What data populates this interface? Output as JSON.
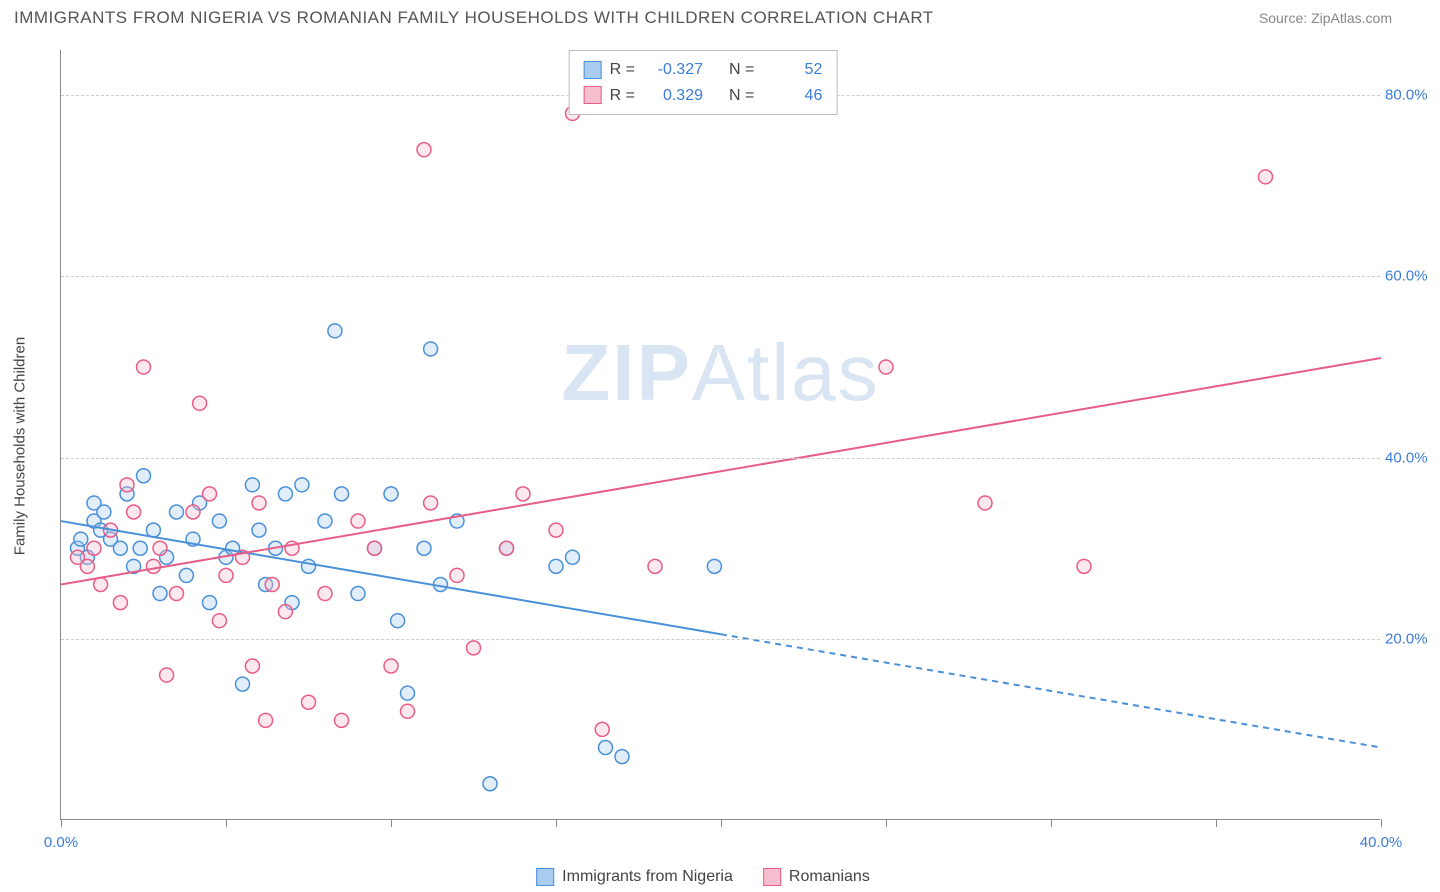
{
  "title": "IMMIGRANTS FROM NIGERIA VS ROMANIAN FAMILY HOUSEHOLDS WITH CHILDREN CORRELATION CHART",
  "source_label": "Source: ",
  "source_value": "ZipAtlas.com",
  "ylabel": "Family Households with Children",
  "watermark_bold": "ZIP",
  "watermark_thin": "Atlas",
  "chart": {
    "type": "scatter",
    "xlim": [
      0,
      40
    ],
    "ylim": [
      0,
      85
    ],
    "xticks": [
      0,
      5,
      10,
      15,
      20,
      25,
      30,
      35,
      40
    ],
    "xtick_labels": {
      "0": "0.0%",
      "40": "40.0%"
    },
    "yticks": [
      20,
      40,
      60,
      80
    ],
    "ytick_labels": [
      "20.0%",
      "40.0%",
      "60.0%",
      "80.0%"
    ],
    "grid_color": "#cccccc",
    "background_color": "#ffffff",
    "marker_radius": 7,
    "marker_fill_opacity": 0.35,
    "marker_stroke_width": 1.5,
    "line_width": 2
  },
  "series": [
    {
      "key": "nigeria",
      "label": "Immigrants from Nigeria",
      "color_fill": "#a9cdf0",
      "color_stroke": "#4a90d9",
      "r_value": "-0.327",
      "n_value": "52",
      "trend": {
        "x1": 0,
        "y1": 33,
        "x2": 40,
        "y2": 8,
        "solid_until_x": 20
      },
      "points": [
        [
          0.5,
          30
        ],
        [
          0.6,
          31
        ],
        [
          0.8,
          29
        ],
        [
          1.0,
          33
        ],
        [
          1.0,
          35
        ],
        [
          1.2,
          32
        ],
        [
          1.3,
          34
        ],
        [
          1.5,
          31
        ],
        [
          1.8,
          30
        ],
        [
          2.0,
          36
        ],
        [
          2.2,
          28
        ],
        [
          2.4,
          30
        ],
        [
          2.5,
          38
        ],
        [
          2.8,
          32
        ],
        [
          3.0,
          25
        ],
        [
          3.2,
          29
        ],
        [
          3.5,
          34
        ],
        [
          3.8,
          27
        ],
        [
          4.0,
          31
        ],
        [
          4.2,
          35
        ],
        [
          4.5,
          24
        ],
        [
          4.8,
          33
        ],
        [
          5.0,
          29
        ],
        [
          5.2,
          30
        ],
        [
          5.5,
          15
        ],
        [
          5.8,
          37
        ],
        [
          6.0,
          32
        ],
        [
          6.2,
          26
        ],
        [
          6.5,
          30
        ],
        [
          6.8,
          36
        ],
        [
          7.0,
          24
        ],
        [
          7.3,
          37
        ],
        [
          7.5,
          28
        ],
        [
          8.0,
          33
        ],
        [
          8.3,
          54
        ],
        [
          8.5,
          36
        ],
        [
          9.0,
          25
        ],
        [
          9.5,
          30
        ],
        [
          10.0,
          36
        ],
        [
          10.2,
          22
        ],
        [
          10.5,
          14
        ],
        [
          11.0,
          30
        ],
        [
          11.2,
          52
        ],
        [
          11.5,
          26
        ],
        [
          12.0,
          33
        ],
        [
          13.0,
          4
        ],
        [
          13.5,
          30
        ],
        [
          15.0,
          28
        ],
        [
          15.5,
          29
        ],
        [
          16.5,
          8
        ],
        [
          17.0,
          7
        ],
        [
          19.8,
          28
        ]
      ]
    },
    {
      "key": "romania",
      "label": "Romanians",
      "color_fill": "#f5bdce",
      "color_stroke": "#e85d86",
      "r_value": "0.329",
      "n_value": "46",
      "trend": {
        "x1": 0,
        "y1": 26,
        "x2": 40,
        "y2": 51,
        "solid_until_x": 40
      },
      "points": [
        [
          0.5,
          29
        ],
        [
          0.8,
          28
        ],
        [
          1.0,
          30
        ],
        [
          1.2,
          26
        ],
        [
          1.5,
          32
        ],
        [
          1.8,
          24
        ],
        [
          2.0,
          37
        ],
        [
          2.2,
          34
        ],
        [
          2.5,
          50
        ],
        [
          2.8,
          28
        ],
        [
          3.0,
          30
        ],
        [
          3.2,
          16
        ],
        [
          3.5,
          25
        ],
        [
          4.0,
          34
        ],
        [
          4.2,
          46
        ],
        [
          4.5,
          36
        ],
        [
          4.8,
          22
        ],
        [
          5.0,
          27
        ],
        [
          5.5,
          29
        ],
        [
          5.8,
          17
        ],
        [
          6.0,
          35
        ],
        [
          6.2,
          11
        ],
        [
          6.4,
          26
        ],
        [
          6.8,
          23
        ],
        [
          7.0,
          30
        ],
        [
          7.5,
          13
        ],
        [
          8.0,
          25
        ],
        [
          8.5,
          11
        ],
        [
          9.0,
          33
        ],
        [
          9.5,
          30
        ],
        [
          10.0,
          17
        ],
        [
          10.5,
          12
        ],
        [
          11.0,
          74
        ],
        [
          11.2,
          35
        ],
        [
          12.0,
          27
        ],
        [
          12.5,
          19
        ],
        [
          13.5,
          30
        ],
        [
          14.0,
          36
        ],
        [
          15.0,
          32
        ],
        [
          15.5,
          78
        ],
        [
          16.4,
          10
        ],
        [
          18.0,
          28
        ],
        [
          25.0,
          50
        ],
        [
          28.0,
          35
        ],
        [
          31.0,
          28
        ],
        [
          36.5,
          71
        ]
      ]
    }
  ],
  "legend_top": {
    "r_label": "R =",
    "n_label": "N ="
  },
  "colors": {
    "axis_text": "#3b7dd8",
    "title_text": "#555555",
    "body_text": "#444444"
  }
}
